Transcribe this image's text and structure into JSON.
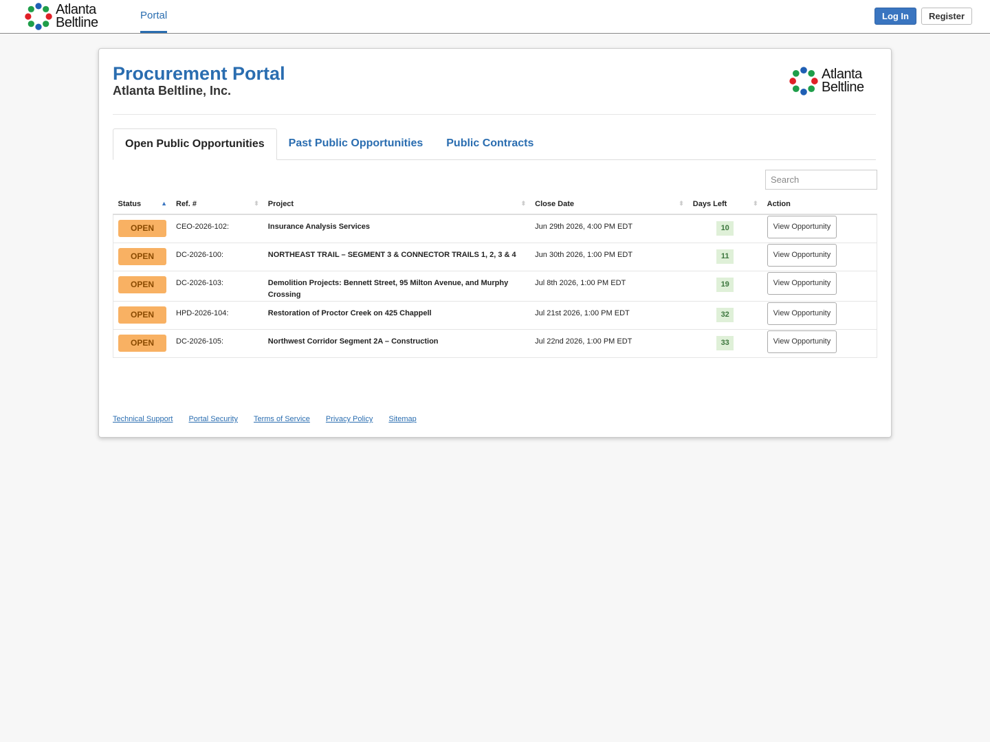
{
  "nav": {
    "logo": {
      "line1": "Atlanta",
      "line2": "Beltline"
    },
    "link": "Portal",
    "login": "Log In",
    "register": "Register"
  },
  "header": {
    "title": "Procurement Portal",
    "subtitle": "Atlanta Beltline, Inc.",
    "logo": {
      "line1": "Atlanta",
      "line2": "Beltline"
    }
  },
  "tabs": [
    "Open Public Opportunities",
    "Past Public Opportunities",
    "Public Contracts"
  ],
  "search_placeholder": "Search",
  "table": {
    "columns": [
      "Status",
      "Ref. #",
      "Project",
      "Close Date",
      "Days Left",
      "Action"
    ],
    "rows": [
      [
        "OPEN",
        "CEO-2026-102:",
        "Insurance Analysis Services",
        "Jun 29th 2026, 4:00 PM EDT",
        10,
        "View Opportunity"
      ],
      [
        "OPEN",
        "DC-2026-100:",
        "NORTHEAST TRAIL – SEGMENT 3 & CONNECTOR TRAILS 1, 2, 3 & 4",
        "Jun 30th 2026, 1:00 PM EDT",
        11,
        "View Opportunity"
      ],
      [
        "OPEN",
        "DC-2026-103:",
        "Demolition Projects: Bennett Street, 95 Milton Avenue, and Murphy Crossing",
        "Jul 8th 2026, 1:00 PM EDT",
        19,
        "View Opportunity"
      ],
      [
        "OPEN",
        "HPD-2026-104:",
        "Restoration of Proctor Creek on 425 Chappell",
        "Jul 21st 2026, 1:00 PM EDT",
        32,
        "View Opportunity"
      ],
      [
        "OPEN",
        "DC-2026-105:",
        "Northwest Corridor Segment 2A – Construction",
        "Jul 22nd 2026, 1:00 PM EDT",
        33,
        "View Opportunity"
      ]
    ]
  },
  "footer": {
    "links": [
      "Technical Support",
      "Portal Security",
      "Terms of Service",
      "Privacy Policy",
      "Sitemap"
    ]
  }
}
